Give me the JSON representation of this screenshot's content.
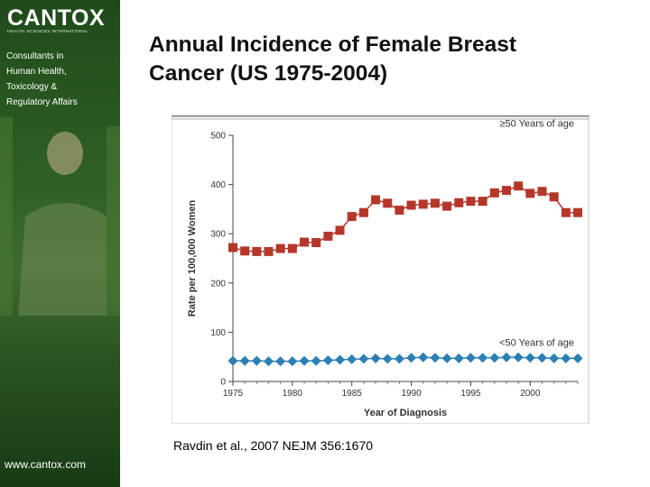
{
  "brand": {
    "logo_text": "CANTOX",
    "logo_subtitle": "HEALTH SCIENCES INTERNATIONAL",
    "tagline_lines": [
      "Consultants in",
      "Human Health,",
      "Toxicology &",
      "Regulatory Affairs"
    ],
    "url": "www.cantox.com"
  },
  "slide": {
    "title_lines": [
      "Annual Incidence of Female Breast",
      "Cancer (US 1975-2004)"
    ],
    "citation": "Ravdin et al., 2007 NEJM 356:1670"
  },
  "colors": {
    "sidebar_green": "#2f5e25",
    "series_high": "#b5372a",
    "series_low": "#2b7fb5"
  },
  "chart_data": {
    "type": "line",
    "title": "",
    "xlabel": "Year of Diagnosis",
    "ylabel": "Rate per 100,000 Women",
    "xlim": [
      1975,
      2004
    ],
    "ylim": [
      0,
      500
    ],
    "xticks": [
      1975,
      1980,
      1985,
      1990,
      1995,
      2000
    ],
    "yticks": [
      0,
      100,
      200,
      300,
      400,
      500
    ],
    "x": [
      1975,
      1976,
      1977,
      1978,
      1979,
      1980,
      1981,
      1982,
      1983,
      1984,
      1985,
      1986,
      1987,
      1988,
      1989,
      1990,
      1991,
      1992,
      1993,
      1994,
      1995,
      1996,
      1997,
      1998,
      1999,
      2000,
      2001,
      2002,
      2003,
      2004
    ],
    "series": [
      {
        "name": "≥50 Years of age",
        "marker": "square",
        "values": [
          272,
          265,
          264,
          264,
          270,
          270,
          283,
          282,
          295,
          307,
          335,
          343,
          369,
          362,
          348,
          358,
          360,
          362,
          356,
          363,
          366,
          366,
          383,
          388,
          397,
          382,
          386,
          375,
          343,
          343
        ]
      },
      {
        "name": "<50 Years of age",
        "marker": "diamond",
        "values": [
          42,
          42,
          42,
          41,
          41,
          41,
          42,
          42,
          43,
          44,
          45,
          46,
          47,
          46,
          46,
          48,
          49,
          48,
          47,
          47,
          48,
          48,
          48,
          49,
          49,
          48,
          48,
          47,
          47,
          47
        ]
      }
    ],
    "legend": "inline-right",
    "grid": false
  }
}
